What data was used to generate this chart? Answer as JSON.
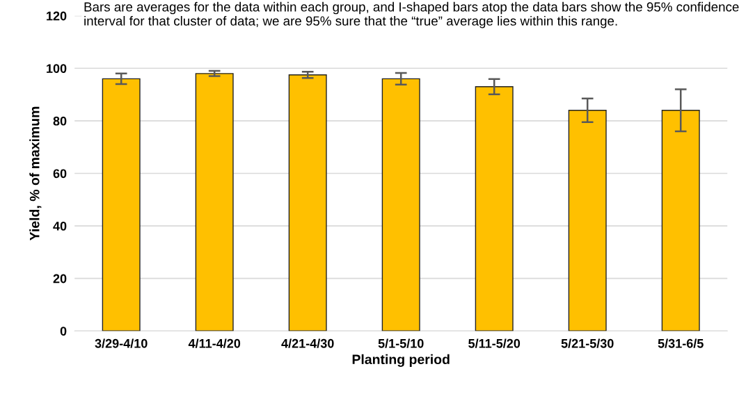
{
  "chart_data": {
    "type": "bar",
    "annotations": [
      "Bars are averages for the data within each group, and I-shaped bars atop the data bars show the 95% confidence interval for that cluster of data; we are 95% sure that the “true” average lies within this range."
    ],
    "xlabel": "Planting period",
    "ylabel": "Yield, % of maximum",
    "categories": [
      "3/29-4/10",
      "4/11-4/20",
      "4/21-4/30",
      "5/1-5/10",
      "5/11-5/20",
      "5/21-5/30",
      "5/31-6/5"
    ],
    "values": [
      96,
      98,
      97.5,
      96,
      93,
      84,
      84
    ],
    "errors": [
      2,
      1,
      1.2,
      2.2,
      2.9,
      4.5,
      8
    ],
    "color": "#ffc000",
    "ylim": [
      0,
      120
    ],
    "yticks": [
      0,
      20,
      40,
      60,
      80,
      100,
      120
    ],
    "grid": "y"
  }
}
